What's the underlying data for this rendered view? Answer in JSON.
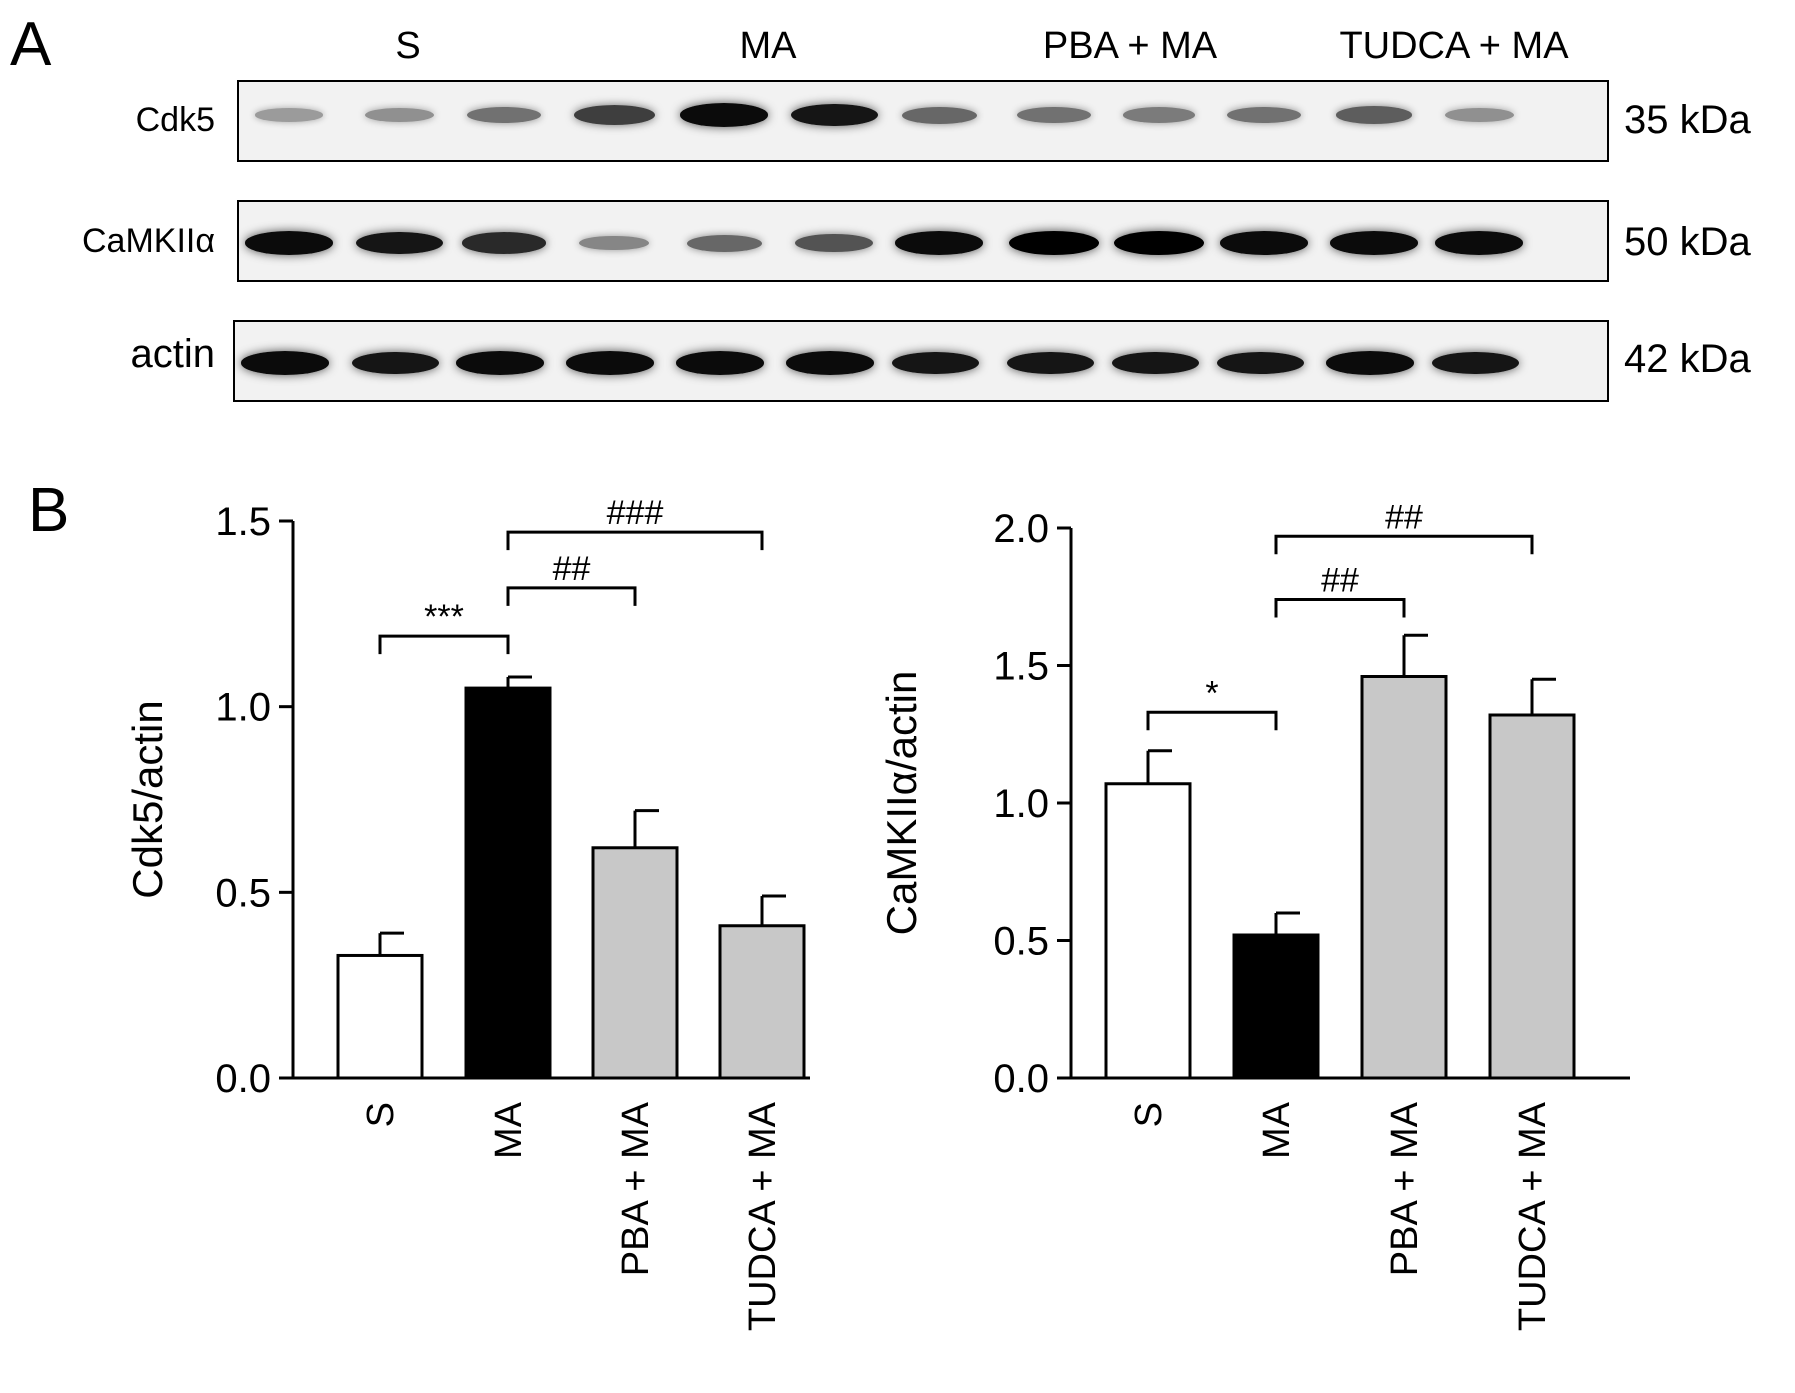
{
  "panel_a": {
    "letter": "A",
    "groups": [
      "S",
      "MA",
      "PBA + MA",
      "TUDCA + MA"
    ],
    "rows": [
      {
        "label": "Cdk5",
        "kda": "35 kDa",
        "band_intensity": [
          0.25,
          0.3,
          0.45,
          0.7,
          0.95,
          0.9,
          0.5,
          0.45,
          0.4,
          0.45,
          0.55,
          0.3
        ]
      },
      {
        "label": "CaMKIIα",
        "kda": "50 kDa",
        "band_intensity": [
          0.95,
          0.9,
          0.8,
          0.35,
          0.5,
          0.6,
          0.95,
          1.0,
          1.0,
          0.95,
          0.95,
          0.95
        ]
      },
      {
        "label": "actin",
        "kda": "42 kDa",
        "band_intensity": [
          0.95,
          0.9,
          0.95,
          0.95,
          0.95,
          0.95,
          0.9,
          0.9,
          0.9,
          0.9,
          0.95,
          0.9
        ]
      }
    ]
  },
  "panel_b": {
    "letter": "B"
  },
  "chart_data": [
    {
      "type": "bar",
      "categories": [
        "S",
        "MA",
        "PBA + MA",
        "TUDCA + MA"
      ],
      "values": [
        0.33,
        1.05,
        0.62,
        0.41
      ],
      "errors": [
        0.06,
        0.03,
        0.1,
        0.08
      ],
      "colors": [
        "#ffffff",
        "#000000",
        "#c8c8c8",
        "#c8c8c8"
      ],
      "ylabel": "Cdk5/actin",
      "ylim": [
        0,
        1.5
      ],
      "yticks": [
        "0.0",
        "0.5",
        "1.0",
        "1.5"
      ],
      "ytick_values": [
        0,
        0.5,
        1.0,
        1.5
      ],
      "annotations": [
        {
          "from": 0,
          "to": 1,
          "text": "***",
          "level": 1.19
        },
        {
          "from": 1,
          "to": 2,
          "text": "##",
          "level": 1.32
        },
        {
          "from": 1,
          "to": 3,
          "text": "###",
          "level": 1.47
        }
      ]
    },
    {
      "type": "bar",
      "categories": [
        "S",
        "MA",
        "PBA + MA",
        "TUDCA + MA"
      ],
      "values": [
        1.07,
        0.52,
        1.46,
        1.32
      ],
      "errors": [
        0.12,
        0.08,
        0.15,
        0.13
      ],
      "colors": [
        "#ffffff",
        "#000000",
        "#c8c8c8",
        "#c8c8c8"
      ],
      "ylabel": "CaMKIIα/actin",
      "ylim": [
        0,
        2.0
      ],
      "yticks": [
        "0.0",
        "0.5",
        "1.0",
        "1.5",
        "2.0"
      ],
      "ytick_values": [
        0,
        0.5,
        1.0,
        1.5,
        2.0
      ],
      "annotations": [
        {
          "from": 0,
          "to": 1,
          "text": "*",
          "level": 1.33
        },
        {
          "from": 1,
          "to": 2,
          "text": "##",
          "level": 1.74
        },
        {
          "from": 1,
          "to": 3,
          "text": "##",
          "level": 1.97
        }
      ]
    }
  ]
}
